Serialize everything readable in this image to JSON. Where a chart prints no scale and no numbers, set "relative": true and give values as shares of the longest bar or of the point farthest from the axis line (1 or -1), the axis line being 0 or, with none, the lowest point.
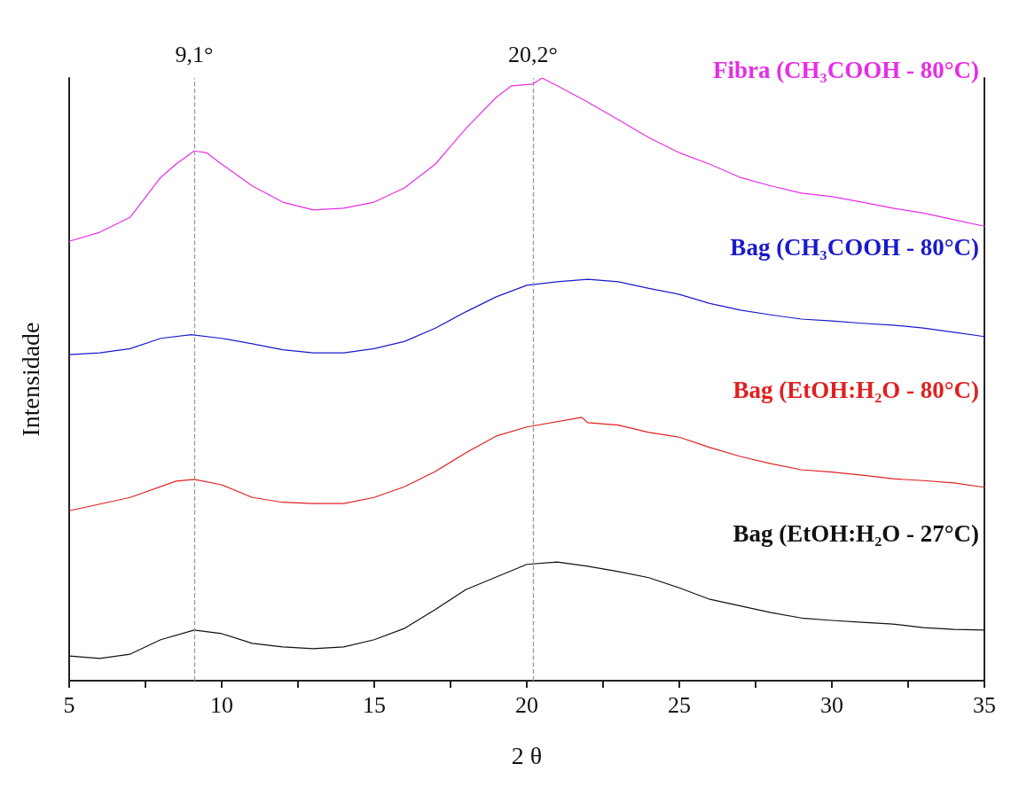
{
  "chart_data": {
    "type": "line",
    "relative": true,
    "xlabel": "2 θ",
    "ylabel": "Intensidade",
    "xlim": [
      5,
      35
    ],
    "xticks": [
      5,
      {
        "value": 7.5,
        "label": null
      },
      10,
      {
        "value": 12.5,
        "label": null
      },
      15,
      {
        "value": 17.5,
        "label": null
      },
      20,
      {
        "value": 22.5,
        "label": null
      },
      25,
      {
        "value": 27.5,
        "label": null
      },
      30,
      {
        "value": 32.5,
        "label": null
      },
      35
    ],
    "grid": false,
    "legend": false,
    "marker": "none",
    "line_style": "solid",
    "ref_lines": [
      {
        "axis": "x",
        "value": 9.1,
        "label": "9,1°",
        "color": "#999999",
        "line_style": "dashed"
      },
      {
        "axis": "x",
        "value": 20.2,
        "label": "20,2°",
        "color": "#999999",
        "line_style": "dashed"
      }
    ],
    "series": [
      {
        "name": "Fibra (CH₃COOH - 80°C)",
        "color": "#e62ee6",
        "x": [
          5,
          6,
          7,
          8,
          8.5,
          9.1,
          9.5,
          10,
          11,
          12,
          13,
          14,
          15,
          16,
          17,
          18,
          19,
          19.5,
          20.2,
          20.5,
          21,
          22,
          23,
          24,
          25,
          26,
          27,
          28,
          29,
          30,
          31,
          32,
          33,
          34,
          35
        ],
        "values": [
          0.729,
          0.744,
          0.769,
          0.835,
          0.857,
          0.879,
          0.876,
          0.857,
          0.821,
          0.794,
          0.781,
          0.784,
          0.794,
          0.818,
          0.857,
          0.916,
          0.968,
          0.987,
          0.99,
          1,
          0.987,
          0.96,
          0.931,
          0.901,
          0.876,
          0.857,
          0.835,
          0.821,
          0.809,
          0.803,
          0.794,
          0.784,
          0.776,
          0.765,
          0.754
        ]
      },
      {
        "name": "Bag (CH₃COOH - 80°C)",
        "color": "#1a1acc",
        "x": [
          5,
          6,
          7,
          8,
          9,
          10,
          11,
          12,
          13,
          14,
          15,
          16,
          17,
          18,
          19,
          20,
          21,
          22,
          23,
          24,
          25,
          26,
          27,
          28,
          29,
          30,
          31,
          32,
          33,
          34,
          35
        ],
        "values": [
          0.541,
          0.544,
          0.551,
          0.568,
          0.574,
          0.568,
          0.559,
          0.549,
          0.544,
          0.544,
          0.551,
          0.563,
          0.585,
          0.612,
          0.637,
          0.656,
          0.662,
          0.666,
          0.662,
          0.651,
          0.641,
          0.626,
          0.615,
          0.607,
          0.6,
          0.597,
          0.593,
          0.59,
          0.585,
          0.578,
          0.571
        ]
      },
      {
        "name": "Bag (EtOH:H₂O - 80°C)",
        "color": "#e02020",
        "x": [
          5,
          7,
          8.5,
          9.1,
          10,
          11,
          12,
          13,
          14,
          15,
          16,
          17,
          18,
          19,
          20,
          21.8,
          22,
          23,
          24,
          25,
          26,
          27,
          28,
          29,
          30,
          31,
          32,
          33,
          34,
          35
        ],
        "values": [
          0.282,
          0.304,
          0.331,
          0.334,
          0.325,
          0.304,
          0.296,
          0.294,
          0.294,
          0.304,
          0.322,
          0.347,
          0.378,
          0.406,
          0.421,
          0.437,
          0.428,
          0.424,
          0.412,
          0.404,
          0.387,
          0.372,
          0.36,
          0.35,
          0.346,
          0.341,
          0.335,
          0.332,
          0.328,
          0.321
        ]
      },
      {
        "name": "Bag (EtOH:H₂O - 27°C)",
        "color": "#111111",
        "x": [
          5,
          6,
          7,
          8,
          9.1,
          10,
          11,
          12,
          13,
          14,
          15,
          16,
          17,
          18,
          19,
          20,
          21,
          22,
          23,
          24,
          25,
          26,
          27,
          28,
          29,
          30,
          31,
          32,
          33,
          34,
          35
        ],
        "values": [
          0.041,
          0.037,
          0.044,
          0.068,
          0.084,
          0.078,
          0.062,
          0.056,
          0.053,
          0.056,
          0.068,
          0.087,
          0.118,
          0.151,
          0.172,
          0.193,
          0.197,
          0.19,
          0.181,
          0.171,
          0.154,
          0.135,
          0.124,
          0.113,
          0.104,
          0.1,
          0.097,
          0.094,
          0.088,
          0.085,
          0.084
        ]
      }
    ]
  }
}
